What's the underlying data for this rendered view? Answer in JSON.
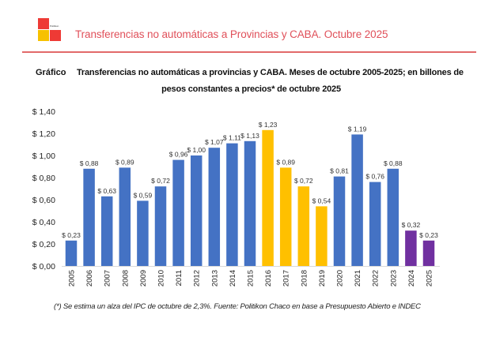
{
  "header": {
    "logo_text": "Politikon",
    "title": "Transferencias no automáticas a Provincias y CABA. Octubre 2025"
  },
  "chart_label": "Gráfico",
  "chart_title_line1": "Transferencias no automáticas a provincias y CABA. Meses de octubre 2005-2025; en billones de",
  "chart_title_line2": "pesos constantes a precios* de octubre 2025",
  "footnote": "(*) Se estima un alza del IPC de octubre de 2,3%. Fuente: Politikon Chaco en base a Presupuesto Abierto e INDEC",
  "colors": {
    "blue": "#4472c4",
    "yellow": "#ffc000",
    "purple": "#7030a0",
    "header_red": "#e0505a"
  },
  "chart_data": {
    "type": "bar",
    "title": "Transferencias no automáticas a provincias y CABA. Meses de octubre 2005-2025; en billones de pesos constantes a precios* de octubre 2025",
    "xlabel": "",
    "ylabel": "",
    "ylim": [
      0,
      1.4
    ],
    "yticks": [
      0,
      0.2,
      0.4,
      0.6,
      0.8,
      1.0,
      1.2,
      1.4
    ],
    "ytick_labels": [
      "$ 0,00",
      "$ 0,20",
      "$ 0,40",
      "$ 0,60",
      "$ 0,80",
      "$ 1,00",
      "$ 1,20",
      "$ 1,40"
    ],
    "grid": false,
    "legend": "none",
    "categories": [
      "2005",
      "2006",
      "2007",
      "2008",
      "2009",
      "2010",
      "2011",
      "2012",
      "2013",
      "2014",
      "2015",
      "2016",
      "2017",
      "2018",
      "2019",
      "2020",
      "2021",
      "2022",
      "2023",
      "2024",
      "2025"
    ],
    "values": [
      0.23,
      0.88,
      0.63,
      0.89,
      0.59,
      0.72,
      0.96,
      1.0,
      1.07,
      1.11,
      1.13,
      1.23,
      0.89,
      0.72,
      0.54,
      0.81,
      1.19,
      0.76,
      0.88,
      0.32,
      0.23
    ],
    "data_labels": [
      "$ 0,23",
      "$ 0,88",
      "$ 0,63",
      "$ 0,89",
      "$ 0,59",
      "$ 0,72",
      "$ 0,96",
      "$ 1,00",
      "$ 1,07",
      "$ 1,11",
      "$ 1,13",
      "$ 1,23",
      "$ 0,89",
      "$ 0,72",
      "$ 0,54",
      "$ 0,81",
      "$ 1,19",
      "$ 0,76",
      "$ 0,88",
      "$ 0,32",
      "$ 0,23"
    ],
    "bar_colors": [
      "blue",
      "blue",
      "blue",
      "blue",
      "blue",
      "blue",
      "blue",
      "blue",
      "blue",
      "blue",
      "blue",
      "yellow",
      "yellow",
      "yellow",
      "yellow",
      "blue",
      "blue",
      "blue",
      "blue",
      "purple",
      "purple"
    ]
  }
}
